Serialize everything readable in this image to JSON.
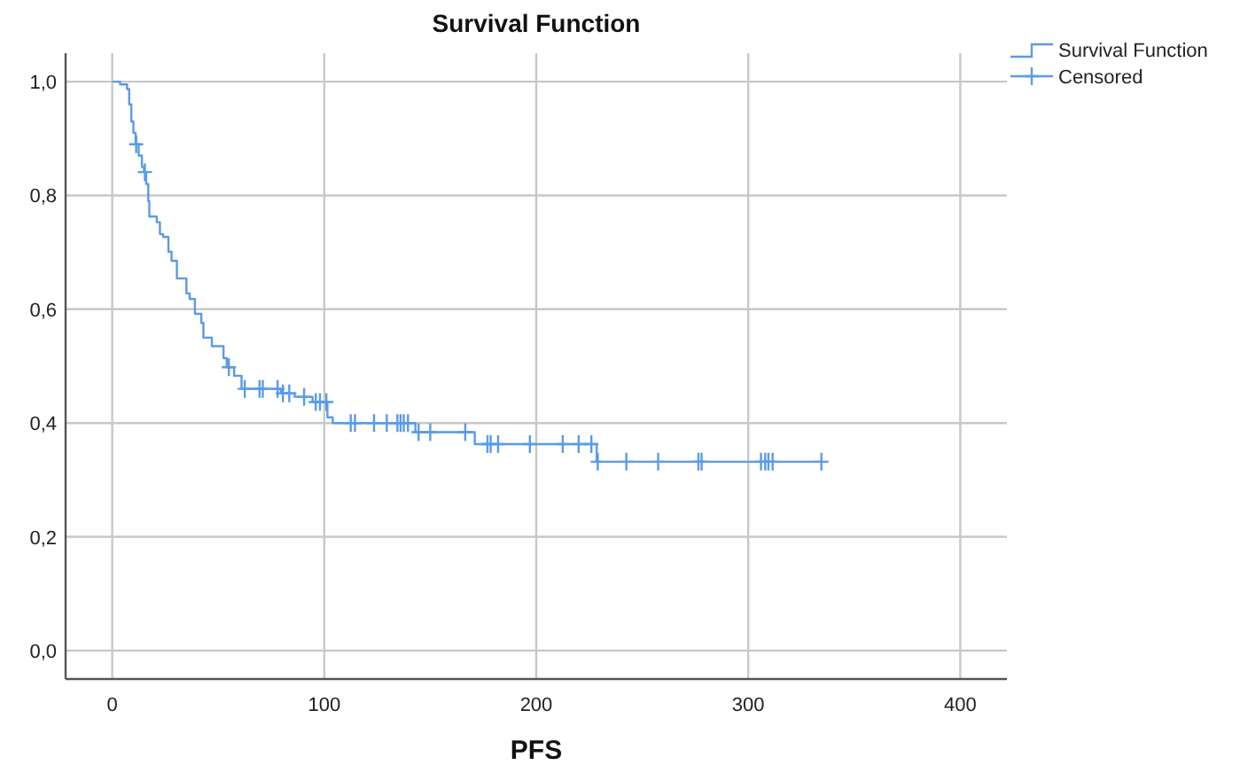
{
  "chart_data": {
    "type": "step",
    "title": "Survival Function",
    "xlabel": "PFS",
    "xlim": [
      -22,
      422
    ],
    "xticks": [
      0,
      100,
      200,
      300,
      400
    ],
    "ylim": [
      -0.05,
      1.05
    ],
    "yticks": [
      {
        "value": 0,
        "label": "0,0"
      },
      {
        "value": 0.2,
        "label": "0,2"
      },
      {
        "value": 0.4,
        "label": "0,4"
      },
      {
        "value": 0.6,
        "label": "0,6"
      },
      {
        "value": 0.8,
        "label": "0,8"
      },
      {
        "value": 1,
        "label": "1,0"
      }
    ],
    "grid": true,
    "legend": "top right",
    "series": [
      {
        "name": "Survival Function",
        "color": "#5a9be6",
        "marker": "none",
        "x": [
          0,
          3.7,
          7,
          8,
          9,
          10,
          11,
          12.5,
          14,
          15,
          16,
          17,
          17.5,
          21,
          22.5,
          24,
          26.5,
          28,
          30.5,
          35,
          36.5,
          39,
          42,
          43,
          47,
          52.5,
          54,
          57.5,
          61,
          79.5,
          86,
          94.5,
          101.5,
          104,
          143,
          171,
          228.5,
          335
        ],
        "values": [
          1,
          0.995,
          0.987,
          0.96,
          0.93,
          0.91,
          0.89,
          0.87,
          0.85,
          0.841,
          0.82,
          0.79,
          0.763,
          0.753,
          0.732,
          0.727,
          0.701,
          0.685,
          0.654,
          0.628,
          0.618,
          0.592,
          0.576,
          0.55,
          0.535,
          0.514,
          0.498,
          0.483,
          0.46,
          0.452,
          0.446,
          0.437,
          0.41,
          0.4,
          0.384,
          0.363,
          0.332,
          0.332
        ]
      },
      {
        "name": "Censored",
        "type": "scatter",
        "color": "#5a9be6",
        "marker": "cross",
        "x": [
          11.3,
          15.4,
          55,
          62.5,
          69.5,
          71,
          78,
          80.5,
          83.5,
          90.5,
          96,
          98,
          101,
          112.5,
          114.5,
          123.5,
          129.5,
          134.5,
          136,
          137.5,
          139.5,
          144.5,
          150,
          166.5,
          177,
          178.5,
          182,
          197,
          212.5,
          220,
          226,
          229,
          242.5,
          257.5,
          276.5,
          278,
          306,
          308,
          309.5,
          311.5,
          334.5
        ],
        "values": [
          0.89,
          0.841,
          0.498,
          0.46,
          0.46,
          0.46,
          0.46,
          0.452,
          0.452,
          0.446,
          0.437,
          0.437,
          0.437,
          0.4,
          0.4,
          0.4,
          0.4,
          0.4,
          0.4,
          0.4,
          0.4,
          0.384,
          0.384,
          0.384,
          0.363,
          0.363,
          0.363,
          0.363,
          0.363,
          0.363,
          0.363,
          0.332,
          0.332,
          0.332,
          0.332,
          0.332,
          0.332,
          0.332,
          0.332,
          0.332,
          0.332
        ]
      }
    ]
  }
}
